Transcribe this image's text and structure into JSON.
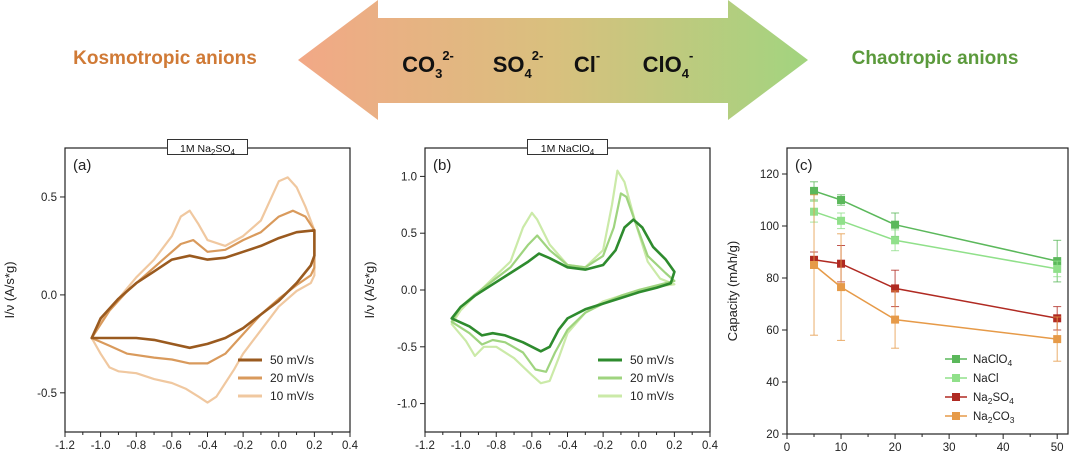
{
  "header": {
    "left_label": "Kosmotropic anions",
    "right_label": "Chaotropic anions",
    "left_color": "#d07a36",
    "right_color": "#5b9a3c",
    "arrow_left_color": "#f2a886",
    "arrow_right_color": "#a2d47f",
    "anions": [
      {
        "base": "CO",
        "sub": "3",
        "sup": "2-"
      },
      {
        "base": "SO",
        "sub": "4",
        "sup": "2-"
      },
      {
        "base": "Cl",
        "sub": "",
        "sup": "-"
      },
      {
        "base": "ClO",
        "sub": "4",
        "sup": "-"
      }
    ]
  },
  "chart_data": [
    {
      "type": "line",
      "panel": "(a)",
      "title_base": "1M Na",
      "title_sub": "2",
      "title_rest": "SO",
      "title_sub2": "4",
      "ylabel": "I/ν (A/s*g)",
      "xlim": [
        -1.2,
        0.4
      ],
      "ylim": [
        -0.7,
        0.75
      ],
      "x_ticks": [
        "-1.2",
        "-1.0",
        "-0.8",
        "-0.6",
        "-0.4",
        "-0.2",
        "0.0",
        "0.2",
        "0.4"
      ],
      "y_ticks": [
        "-0.5",
        "0.0",
        "0.5"
      ],
      "legend_position": "bottom-right",
      "series": [
        {
          "name": "50 mV/s",
          "color": "#9a5a1f",
          "width": 2.6,
          "forward": [
            [
              -1.05,
              -0.22
            ],
            [
              -0.9,
              -0.22
            ],
            [
              -0.8,
              -0.22
            ],
            [
              -0.7,
              -0.23
            ],
            [
              -0.6,
              -0.25
            ],
            [
              -0.5,
              -0.27
            ],
            [
              -0.4,
              -0.25
            ],
            [
              -0.3,
              -0.22
            ],
            [
              -0.2,
              -0.17
            ],
            [
              -0.1,
              -0.1
            ],
            [
              0.0,
              -0.03
            ],
            [
              0.1,
              0.06
            ],
            [
              0.18,
              0.15
            ],
            [
              0.2,
              0.2
            ]
          ],
          "reverse": [
            [
              0.2,
              0.2
            ],
            [
              0.2,
              0.33
            ],
            [
              0.1,
              0.32
            ],
            [
              0.0,
              0.29
            ],
            [
              -0.1,
              0.25
            ],
            [
              -0.2,
              0.22
            ],
            [
              -0.3,
              0.19
            ],
            [
              -0.4,
              0.18
            ],
            [
              -0.5,
              0.2
            ],
            [
              -0.6,
              0.18
            ],
            [
              -0.7,
              0.12
            ],
            [
              -0.8,
              0.06
            ],
            [
              -0.9,
              -0.02
            ],
            [
              -1.0,
              -0.12
            ],
            [
              -1.05,
              -0.22
            ]
          ]
        },
        {
          "name": "20 mV/s",
          "color": "#d99a5c",
          "width": 2.2,
          "forward": [
            [
              -1.05,
              -0.22
            ],
            [
              -0.95,
              -0.26
            ],
            [
              -0.85,
              -0.3
            ],
            [
              -0.7,
              -0.32
            ],
            [
              -0.6,
              -0.33
            ],
            [
              -0.5,
              -0.35
            ],
            [
              -0.4,
              -0.35
            ],
            [
              -0.3,
              -0.3
            ],
            [
              -0.2,
              -0.2
            ],
            [
              -0.1,
              -0.1
            ],
            [
              0.0,
              -0.02
            ],
            [
              0.1,
              0.05
            ],
            [
              0.18,
              0.1
            ],
            [
              0.2,
              0.14
            ]
          ],
          "reverse": [
            [
              0.2,
              0.14
            ],
            [
              0.2,
              0.33
            ],
            [
              0.15,
              0.4
            ],
            [
              0.08,
              0.43
            ],
            [
              0.0,
              0.4
            ],
            [
              -0.1,
              0.32
            ],
            [
              -0.2,
              0.28
            ],
            [
              -0.3,
              0.23
            ],
            [
              -0.4,
              0.22
            ],
            [
              -0.48,
              0.28
            ],
            [
              -0.55,
              0.26
            ],
            [
              -0.65,
              0.18
            ],
            [
              -0.75,
              0.1
            ],
            [
              -0.85,
              0.02
            ],
            [
              -0.95,
              -0.08
            ],
            [
              -1.05,
              -0.22
            ]
          ]
        },
        {
          "name": "10 mV/s",
          "color": "#f0c8a0",
          "width": 2.2,
          "forward": [
            [
              -1.05,
              -0.22
            ],
            [
              -1.0,
              -0.3
            ],
            [
              -0.95,
              -0.37
            ],
            [
              -0.9,
              -0.39
            ],
            [
              -0.8,
              -0.4
            ],
            [
              -0.7,
              -0.43
            ],
            [
              -0.6,
              -0.45
            ],
            [
              -0.52,
              -0.48
            ],
            [
              -0.45,
              -0.52
            ],
            [
              -0.4,
              -0.55
            ],
            [
              -0.35,
              -0.52
            ],
            [
              -0.3,
              -0.45
            ],
            [
              -0.25,
              -0.38
            ],
            [
              -0.2,
              -0.3
            ],
            [
              -0.1,
              -0.18
            ],
            [
              0.0,
              -0.06
            ],
            [
              0.1,
              0.02
            ],
            [
              0.18,
              0.06
            ],
            [
              0.2,
              0.1
            ]
          ],
          "reverse": [
            [
              0.2,
              0.1
            ],
            [
              0.2,
              0.33
            ],
            [
              0.15,
              0.45
            ],
            [
              0.1,
              0.55
            ],
            [
              0.05,
              0.6
            ],
            [
              0.0,
              0.58
            ],
            [
              -0.05,
              0.48
            ],
            [
              -0.1,
              0.38
            ],
            [
              -0.2,
              0.3
            ],
            [
              -0.3,
              0.25
            ],
            [
              -0.4,
              0.28
            ],
            [
              -0.45,
              0.36
            ],
            [
              -0.5,
              0.43
            ],
            [
              -0.55,
              0.4
            ],
            [
              -0.6,
              0.3
            ],
            [
              -0.7,
              0.18
            ],
            [
              -0.8,
              0.09
            ],
            [
              -0.9,
              -0.02
            ],
            [
              -1.0,
              -0.13
            ],
            [
              -1.05,
              -0.22
            ]
          ]
        }
      ]
    },
    {
      "type": "line",
      "panel": "(b)",
      "title_base": "1M NaClO",
      "title_sub": "4",
      "title_rest": "",
      "title_sub2": "",
      "ylabel": "I/ν (A/s*g)",
      "xlim": [
        -1.2,
        0.4
      ],
      "ylim": [
        -1.25,
        1.25
      ],
      "x_ticks": [
        "-1.2",
        "-1.0",
        "-0.8",
        "-0.6",
        "-0.4",
        "-0.2",
        "0.0",
        "0.2",
        "0.4"
      ],
      "y_ticks": [
        "-1.0",
        "-0.5",
        "0.0",
        "0.5",
        "1.0"
      ],
      "legend_position": "bottom-right",
      "series": [
        {
          "name": "50 mV/s",
          "color": "#2e8b2e",
          "width": 2.6,
          "forward": [
            [
              -1.05,
              -0.25
            ],
            [
              -0.95,
              -0.32
            ],
            [
              -0.88,
              -0.4
            ],
            [
              -0.82,
              -0.38
            ],
            [
              -0.75,
              -0.4
            ],
            [
              -0.65,
              -0.46
            ],
            [
              -0.55,
              -0.54
            ],
            [
              -0.5,
              -0.5
            ],
            [
              -0.45,
              -0.35
            ],
            [
              -0.4,
              -0.25
            ],
            [
              -0.3,
              -0.17
            ],
            [
              -0.2,
              -0.12
            ],
            [
              -0.1,
              -0.07
            ],
            [
              0.0,
              -0.02
            ],
            [
              0.1,
              0.02
            ],
            [
              0.18,
              0.06
            ],
            [
              0.2,
              0.16
            ]
          ],
          "reverse": [
            [
              0.2,
              0.16
            ],
            [
              0.15,
              0.27
            ],
            [
              0.08,
              0.38
            ],
            [
              0.02,
              0.55
            ],
            [
              -0.03,
              0.62
            ],
            [
              -0.08,
              0.55
            ],
            [
              -0.13,
              0.35
            ],
            [
              -0.2,
              0.22
            ],
            [
              -0.3,
              0.18
            ],
            [
              -0.4,
              0.2
            ],
            [
              -0.5,
              0.28
            ],
            [
              -0.56,
              0.32
            ],
            [
              -0.62,
              0.25
            ],
            [
              -0.72,
              0.15
            ],
            [
              -0.82,
              0.05
            ],
            [
              -0.92,
              -0.05
            ],
            [
              -1.0,
              -0.15
            ],
            [
              -1.05,
              -0.25
            ]
          ]
        },
        {
          "name": "20 mV/s",
          "color": "#9fd47f",
          "width": 2.2,
          "forward": [
            [
              -1.05,
              -0.28
            ],
            [
              -0.95,
              -0.38
            ],
            [
              -0.88,
              -0.48
            ],
            [
              -0.82,
              -0.44
            ],
            [
              -0.75,
              -0.46
            ],
            [
              -0.65,
              -0.55
            ],
            [
              -0.58,
              -0.7
            ],
            [
              -0.52,
              -0.72
            ],
            [
              -0.47,
              -0.55
            ],
            [
              -0.4,
              -0.35
            ],
            [
              -0.3,
              -0.2
            ],
            [
              -0.2,
              -0.12
            ],
            [
              -0.1,
              -0.05
            ],
            [
              0.0,
              0.0
            ],
            [
              0.1,
              0.04
            ],
            [
              0.2,
              0.08
            ]
          ],
          "reverse": [
            [
              0.2,
              0.08
            ],
            [
              0.15,
              0.15
            ],
            [
              0.05,
              0.3
            ],
            [
              -0.02,
              0.6
            ],
            [
              -0.07,
              0.82
            ],
            [
              -0.1,
              0.85
            ],
            [
              -0.14,
              0.55
            ],
            [
              -0.2,
              0.3
            ],
            [
              -0.3,
              0.2
            ],
            [
              -0.4,
              0.22
            ],
            [
              -0.5,
              0.35
            ],
            [
              -0.57,
              0.48
            ],
            [
              -0.62,
              0.4
            ],
            [
              -0.72,
              0.2
            ],
            [
              -0.82,
              0.08
            ],
            [
              -0.92,
              -0.04
            ],
            [
              -1.0,
              -0.15
            ],
            [
              -1.05,
              -0.28
            ]
          ]
        },
        {
          "name": "10 mV/s",
          "color": "#cbeaa8",
          "width": 2.2,
          "forward": [
            [
              -1.05,
              -0.3
            ],
            [
              -0.97,
              -0.45
            ],
            [
              -0.92,
              -0.58
            ],
            [
              -0.87,
              -0.5
            ],
            [
              -0.8,
              -0.5
            ],
            [
              -0.7,
              -0.6
            ],
            [
              -0.6,
              -0.75
            ],
            [
              -0.55,
              -0.82
            ],
            [
              -0.5,
              -0.8
            ],
            [
              -0.45,
              -0.6
            ],
            [
              -0.4,
              -0.38
            ],
            [
              -0.3,
              -0.2
            ],
            [
              -0.2,
              -0.1
            ],
            [
              -0.1,
              -0.05
            ],
            [
              0.0,
              0.0
            ],
            [
              0.1,
              0.03
            ],
            [
              0.2,
              0.05
            ]
          ],
          "reverse": [
            [
              0.2,
              0.05
            ],
            [
              0.12,
              0.1
            ],
            [
              0.05,
              0.25
            ],
            [
              -0.02,
              0.6
            ],
            [
              -0.08,
              0.95
            ],
            [
              -0.12,
              1.05
            ],
            [
              -0.15,
              0.75
            ],
            [
              -0.2,
              0.35
            ],
            [
              -0.3,
              0.2
            ],
            [
              -0.4,
              0.22
            ],
            [
              -0.5,
              0.4
            ],
            [
              -0.57,
              0.62
            ],
            [
              -0.6,
              0.68
            ],
            [
              -0.65,
              0.55
            ],
            [
              -0.72,
              0.25
            ],
            [
              -0.82,
              0.1
            ],
            [
              -0.92,
              -0.05
            ],
            [
              -1.0,
              -0.18
            ],
            [
              -1.05,
              -0.3
            ]
          ]
        }
      ]
    },
    {
      "type": "line",
      "panel": "(c)",
      "ylabel": "Capacity (mAh/g)",
      "xlim": [
        0,
        52
      ],
      "ylim": [
        20,
        130
      ],
      "x_ticks": [
        "0",
        "10",
        "20",
        "30",
        "40",
        "50"
      ],
      "y_ticks": [
        "20",
        "40",
        "60",
        "80",
        "100",
        "120"
      ],
      "x": [
        5,
        10,
        20,
        50
      ],
      "legend_position": "bottom-left",
      "series": [
        {
          "name": "NaClO4",
          "label_base": "NaClO",
          "label_sub": "4",
          "color": "#5bb85b",
          "values": [
            113.5,
            110.0,
            100.5,
            86.5
          ],
          "err": [
            3.5,
            2.0,
            4.5,
            8.0
          ]
        },
        {
          "name": "NaCl",
          "label_base": "NaCl",
          "label_sub": "",
          "color": "#90e08a",
          "values": [
            105.5,
            102.0,
            94.5,
            83.5
          ],
          "err": [
            4.0,
            3.0,
            4.0,
            3.0
          ]
        },
        {
          "name": "Na2SO4",
          "label_base": "Na",
          "label_sub": "2",
          "label_rest": "SO",
          "label_sub2": "4",
          "color": "#b02a22",
          "values": [
            87.0,
            85.5,
            76.0,
            64.5
          ],
          "err": [
            3.0,
            7.0,
            7.0,
            4.5
          ]
        },
        {
          "name": "Na2CO3",
          "label_base": "Na",
          "label_sub": "2",
          "label_rest": "CO",
          "label_sub2": "3",
          "color": "#e69a48",
          "values": [
            85.0,
            76.5,
            64.0,
            56.5
          ],
          "err": [
            27.0,
            20.5,
            11.0,
            8.5
          ]
        }
      ]
    }
  ]
}
